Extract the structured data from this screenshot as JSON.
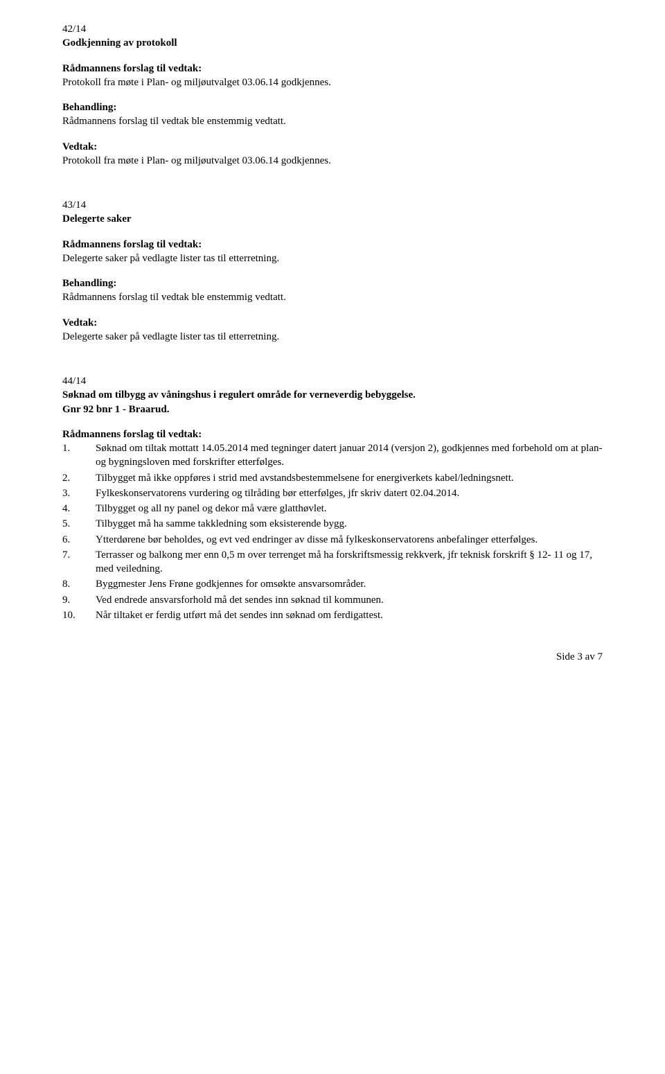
{
  "s42": {
    "id": "42/14",
    "title": "Godkjenning av protokoll",
    "forslag_h": "Rådmannens forslag til vedtak:",
    "forslag_t": "Protokoll fra møte i Plan- og miljøutvalget 03.06.14 godkjennes.",
    "beh_h": "Behandling:",
    "beh_t": "Rådmannens forslag til vedtak ble enstemmig vedtatt.",
    "ved_h": "Vedtak:",
    "ved_t": "Protokoll fra møte i Plan- og miljøutvalget 03.06.14 godkjennes."
  },
  "s43": {
    "id": "43/14",
    "title": "Delegerte saker",
    "forslag_h": "Rådmannens forslag til vedtak:",
    "forslag_t": "Delegerte saker på vedlagte lister tas til etterretning.",
    "beh_h": "Behandling:",
    "beh_t": "Rådmannens forslag til vedtak ble enstemmig vedtatt.",
    "ved_h": "Vedtak:",
    "ved_t": "Delegerte saker på vedlagte lister tas til etterretning."
  },
  "s44": {
    "id": "44/14",
    "title_l1": "Søknad om tilbygg av våningshus i regulert område for verneverdig bebyggelse.",
    "title_l2": "Gnr 92 bnr 1 - Braarud.",
    "forslag_h": "Rådmannens forslag til vedtak:",
    "items": [
      {
        "n": "1.",
        "t": "Søknad om tiltak mottatt 14.05.2014 med tegninger datert januar 2014 (versjon 2), godkjennes med forbehold om at plan- og bygningsloven med forskrifter etterfølges."
      },
      {
        "n": "2.",
        "t": "Tilbygget må ikke oppføres i strid med avstandsbestemmelsene for energiverkets kabel/ledningsnett."
      },
      {
        "n": "3.",
        "t": "Fylkeskonservatorens vurdering og tilråding bør etterfølges, jfr skriv datert 02.04.2014."
      },
      {
        "n": "4.",
        "t": "Tilbygget og all ny panel og dekor må være glatthøvlet."
      },
      {
        "n": "5.",
        "t": "Tilbygget må ha samme takkledning som eksisterende bygg."
      },
      {
        "n": "6.",
        "t": "Ytterdørene bør beholdes, og evt ved endringer av disse må fylkeskonservatorens anbefalinger etterfølges."
      },
      {
        "n": "7.",
        "t": "Terrasser og balkong mer enn 0,5 m over terrenget må ha forskriftsmessig rekkverk, jfr teknisk forskrift § 12- 11 og 17, med veiledning."
      },
      {
        "n": "8.",
        "t": "Byggmester Jens Frøne godkjennes for omsøkte ansvarsområder."
      },
      {
        "n": "9.",
        "t": "Ved endrede ansvarsforhold må det sendes inn søknad til kommunen."
      },
      {
        "n": "10.",
        "t": "Når tiltaket er ferdig utført må det sendes inn søknad om ferdigattest."
      }
    ]
  },
  "footer": "Side 3 av 7"
}
